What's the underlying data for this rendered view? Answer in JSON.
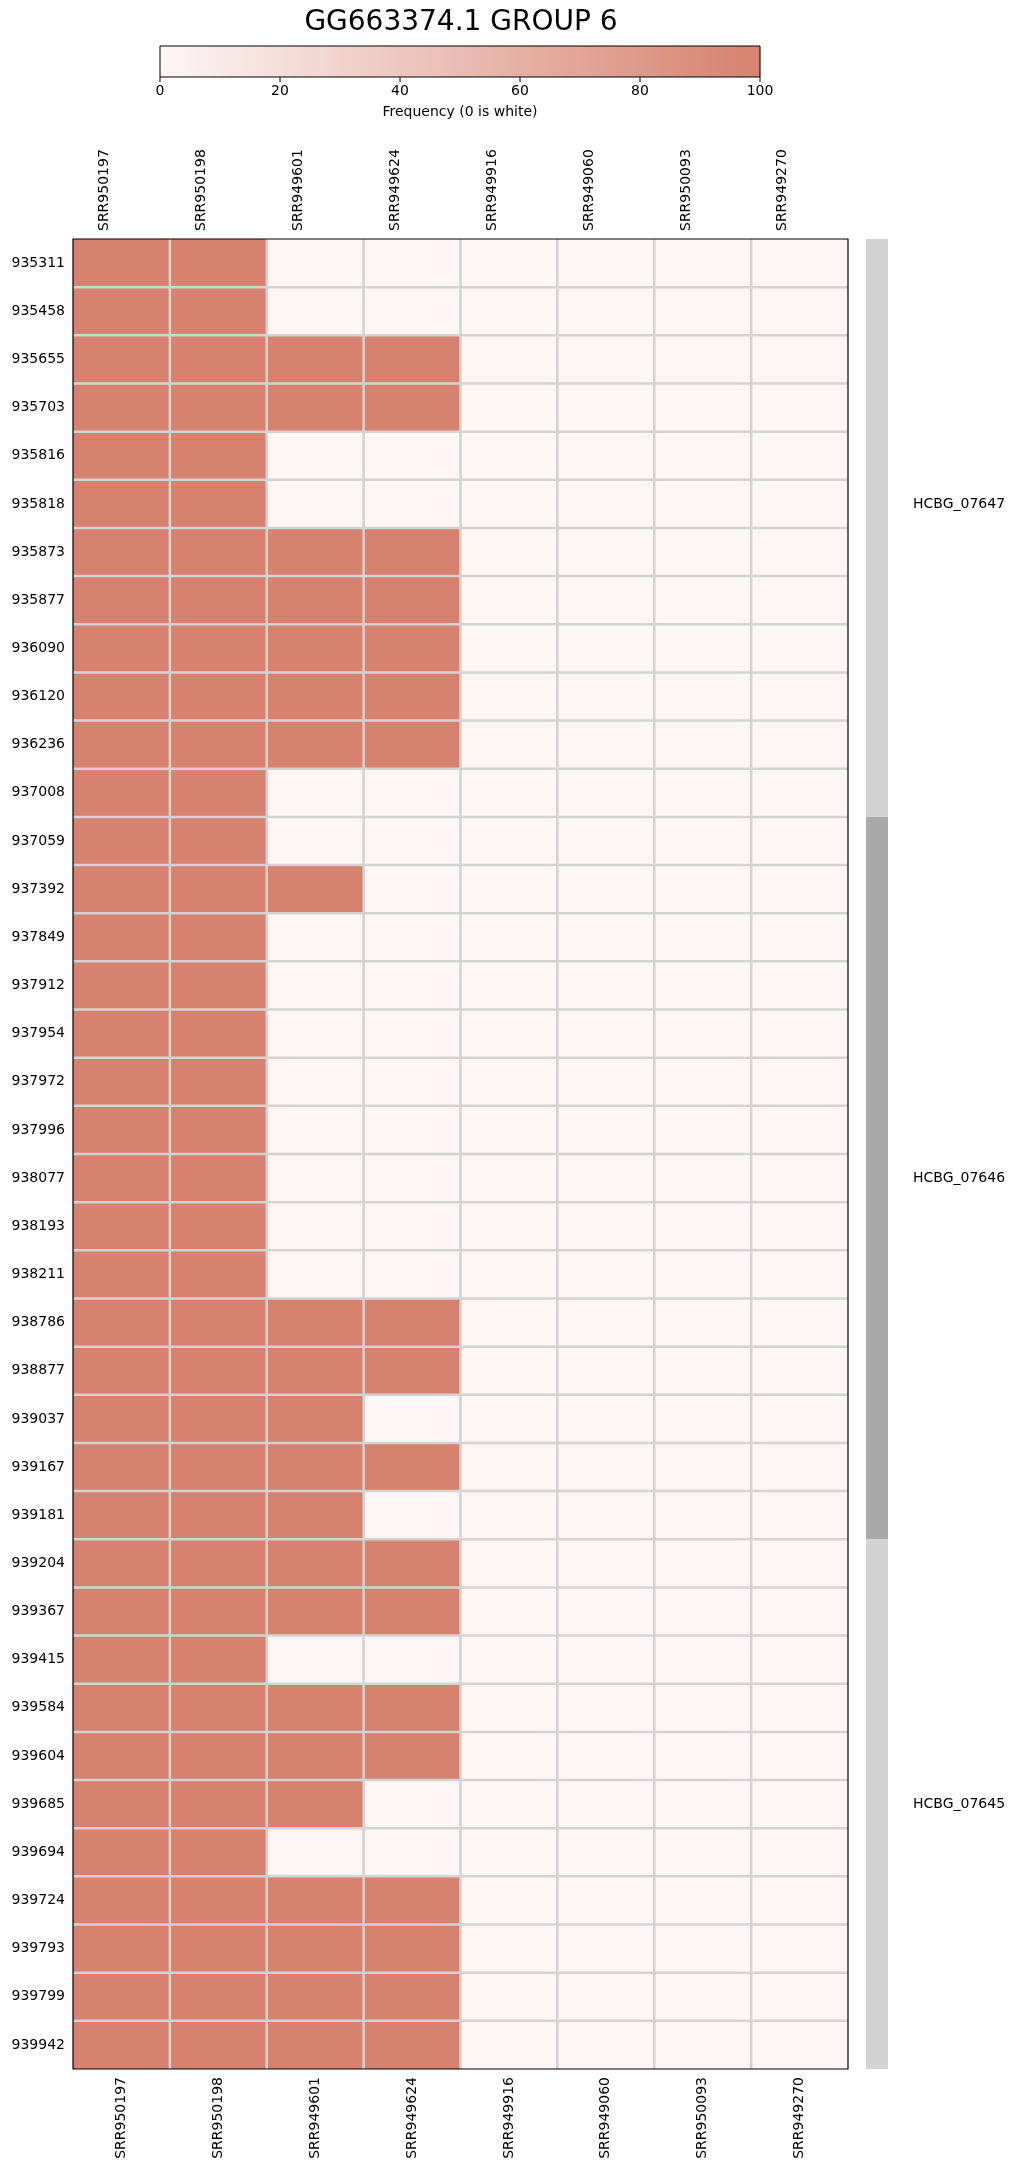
{
  "chart_data": {
    "type": "heatmap",
    "title": "GG663374.1 GROUP 6",
    "clabel": "Frequency (0 is white)",
    "clim": [
      0,
      100
    ],
    "cticks": [
      0,
      20,
      40,
      60,
      80,
      100
    ],
    "categories": [
      "SRR950197",
      "SRR950198",
      "SRR949601",
      "SRR949624",
      "SRR949916",
      "SRR949060",
      "SRR950093",
      "SRR949270"
    ],
    "y_categories": [
      "935311",
      "935458",
      "935655",
      "935703",
      "935816",
      "935818",
      "935873",
      "935877",
      "936090",
      "936120",
      "936236",
      "937008",
      "937059",
      "937392",
      "937849",
      "937912",
      "937954",
      "937972",
      "937996",
      "938077",
      "938193",
      "938211",
      "938786",
      "938877",
      "939037",
      "939167",
      "939181",
      "939204",
      "939367",
      "939415",
      "939584",
      "939604",
      "939685",
      "939694",
      "939724",
      "939793",
      "939799",
      "939942"
    ],
    "y2_categories": [
      null,
      null,
      null,
      null,
      null,
      "HCBG_07647",
      null,
      null,
      null,
      null,
      null,
      null,
      null,
      null,
      null,
      null,
      null,
      null,
      null,
      "HCBG_07646",
      null,
      null,
      null,
      null,
      null,
      null,
      null,
      null,
      null,
      null,
      null,
      null,
      "HCBG_07645",
      null,
      null,
      null,
      null,
      null
    ],
    "cells": [
      [
        100,
        100,
        0,
        0,
        0,
        0,
        0,
        0
      ],
      [
        100,
        100,
        0,
        0,
        0,
        0,
        0,
        0
      ],
      [
        100,
        100,
        100,
        100,
        0,
        0,
        0,
        0
      ],
      [
        100,
        100,
        100,
        100,
        0,
        0,
        0,
        0
      ],
      [
        100,
        100,
        0,
        0,
        0,
        0,
        0,
        0
      ],
      [
        100,
        100,
        0,
        0,
        0,
        0,
        0,
        0
      ],
      [
        100,
        100,
        100,
        100,
        0,
        0,
        0,
        0
      ],
      [
        100,
        100,
        100,
        100,
        0,
        0,
        0,
        0
      ],
      [
        100,
        100,
        100,
        100,
        0,
        0,
        0,
        0
      ],
      [
        100,
        100,
        100,
        100,
        0,
        0,
        0,
        0
      ],
      [
        100,
        100,
        100,
        100,
        0,
        0,
        0,
        0
      ],
      [
        100,
        100,
        0,
        0,
        0,
        0,
        0,
        0
      ],
      [
        100,
        100,
        0,
        0,
        0,
        0,
        0,
        0
      ],
      [
        100,
        100,
        100,
        0,
        0,
        0,
        0,
        0
      ],
      [
        100,
        100,
        0,
        0,
        0,
        0,
        0,
        0
      ],
      [
        100,
        100,
        0,
        0,
        0,
        0,
        0,
        0
      ],
      [
        100,
        100,
        0,
        0,
        0,
        0,
        0,
        0
      ],
      [
        100,
        100,
        0,
        0,
        0,
        0,
        0,
        0
      ],
      [
        100,
        100,
        0,
        0,
        0,
        0,
        0,
        0
      ],
      [
        100,
        100,
        0,
        0,
        0,
        0,
        0,
        0
      ],
      [
        100,
        100,
        0,
        0,
        0,
        0,
        0,
        0
      ],
      [
        100,
        100,
        0,
        0,
        0,
        0,
        0,
        0
      ],
      [
        100,
        100,
        100,
        100,
        0,
        0,
        0,
        0
      ],
      [
        100,
        100,
        100,
        100,
        0,
        0,
        0,
        0
      ],
      [
        100,
        100,
        100,
        0,
        0,
        0,
        0,
        0
      ],
      [
        100,
        100,
        100,
        100,
        0,
        0,
        0,
        0
      ],
      [
        100,
        100,
        100,
        0,
        0,
        0,
        0,
        0
      ],
      [
        100,
        100,
        100,
        100,
        0,
        0,
        0,
        0
      ],
      [
        100,
        100,
        100,
        100,
        0,
        0,
        0,
        0
      ],
      [
        100,
        100,
        0,
        0,
        0,
        0,
        0,
        0
      ],
      [
        100,
        100,
        100,
        100,
        0,
        0,
        0,
        0
      ],
      [
        100,
        100,
        100,
        100,
        0,
        0,
        0,
        0
      ],
      [
        100,
        100,
        100,
        0,
        0,
        0,
        0,
        0
      ],
      [
        100,
        100,
        0,
        0,
        0,
        0,
        0,
        0
      ],
      [
        100,
        100,
        100,
        100,
        0,
        0,
        0,
        0
      ],
      [
        100,
        100,
        100,
        100,
        0,
        0,
        0,
        0
      ],
      [
        100,
        100,
        100,
        100,
        0,
        0,
        0,
        0
      ],
      [
        100,
        100,
        100,
        100,
        0,
        0,
        0,
        0
      ]
    ]
  }
}
